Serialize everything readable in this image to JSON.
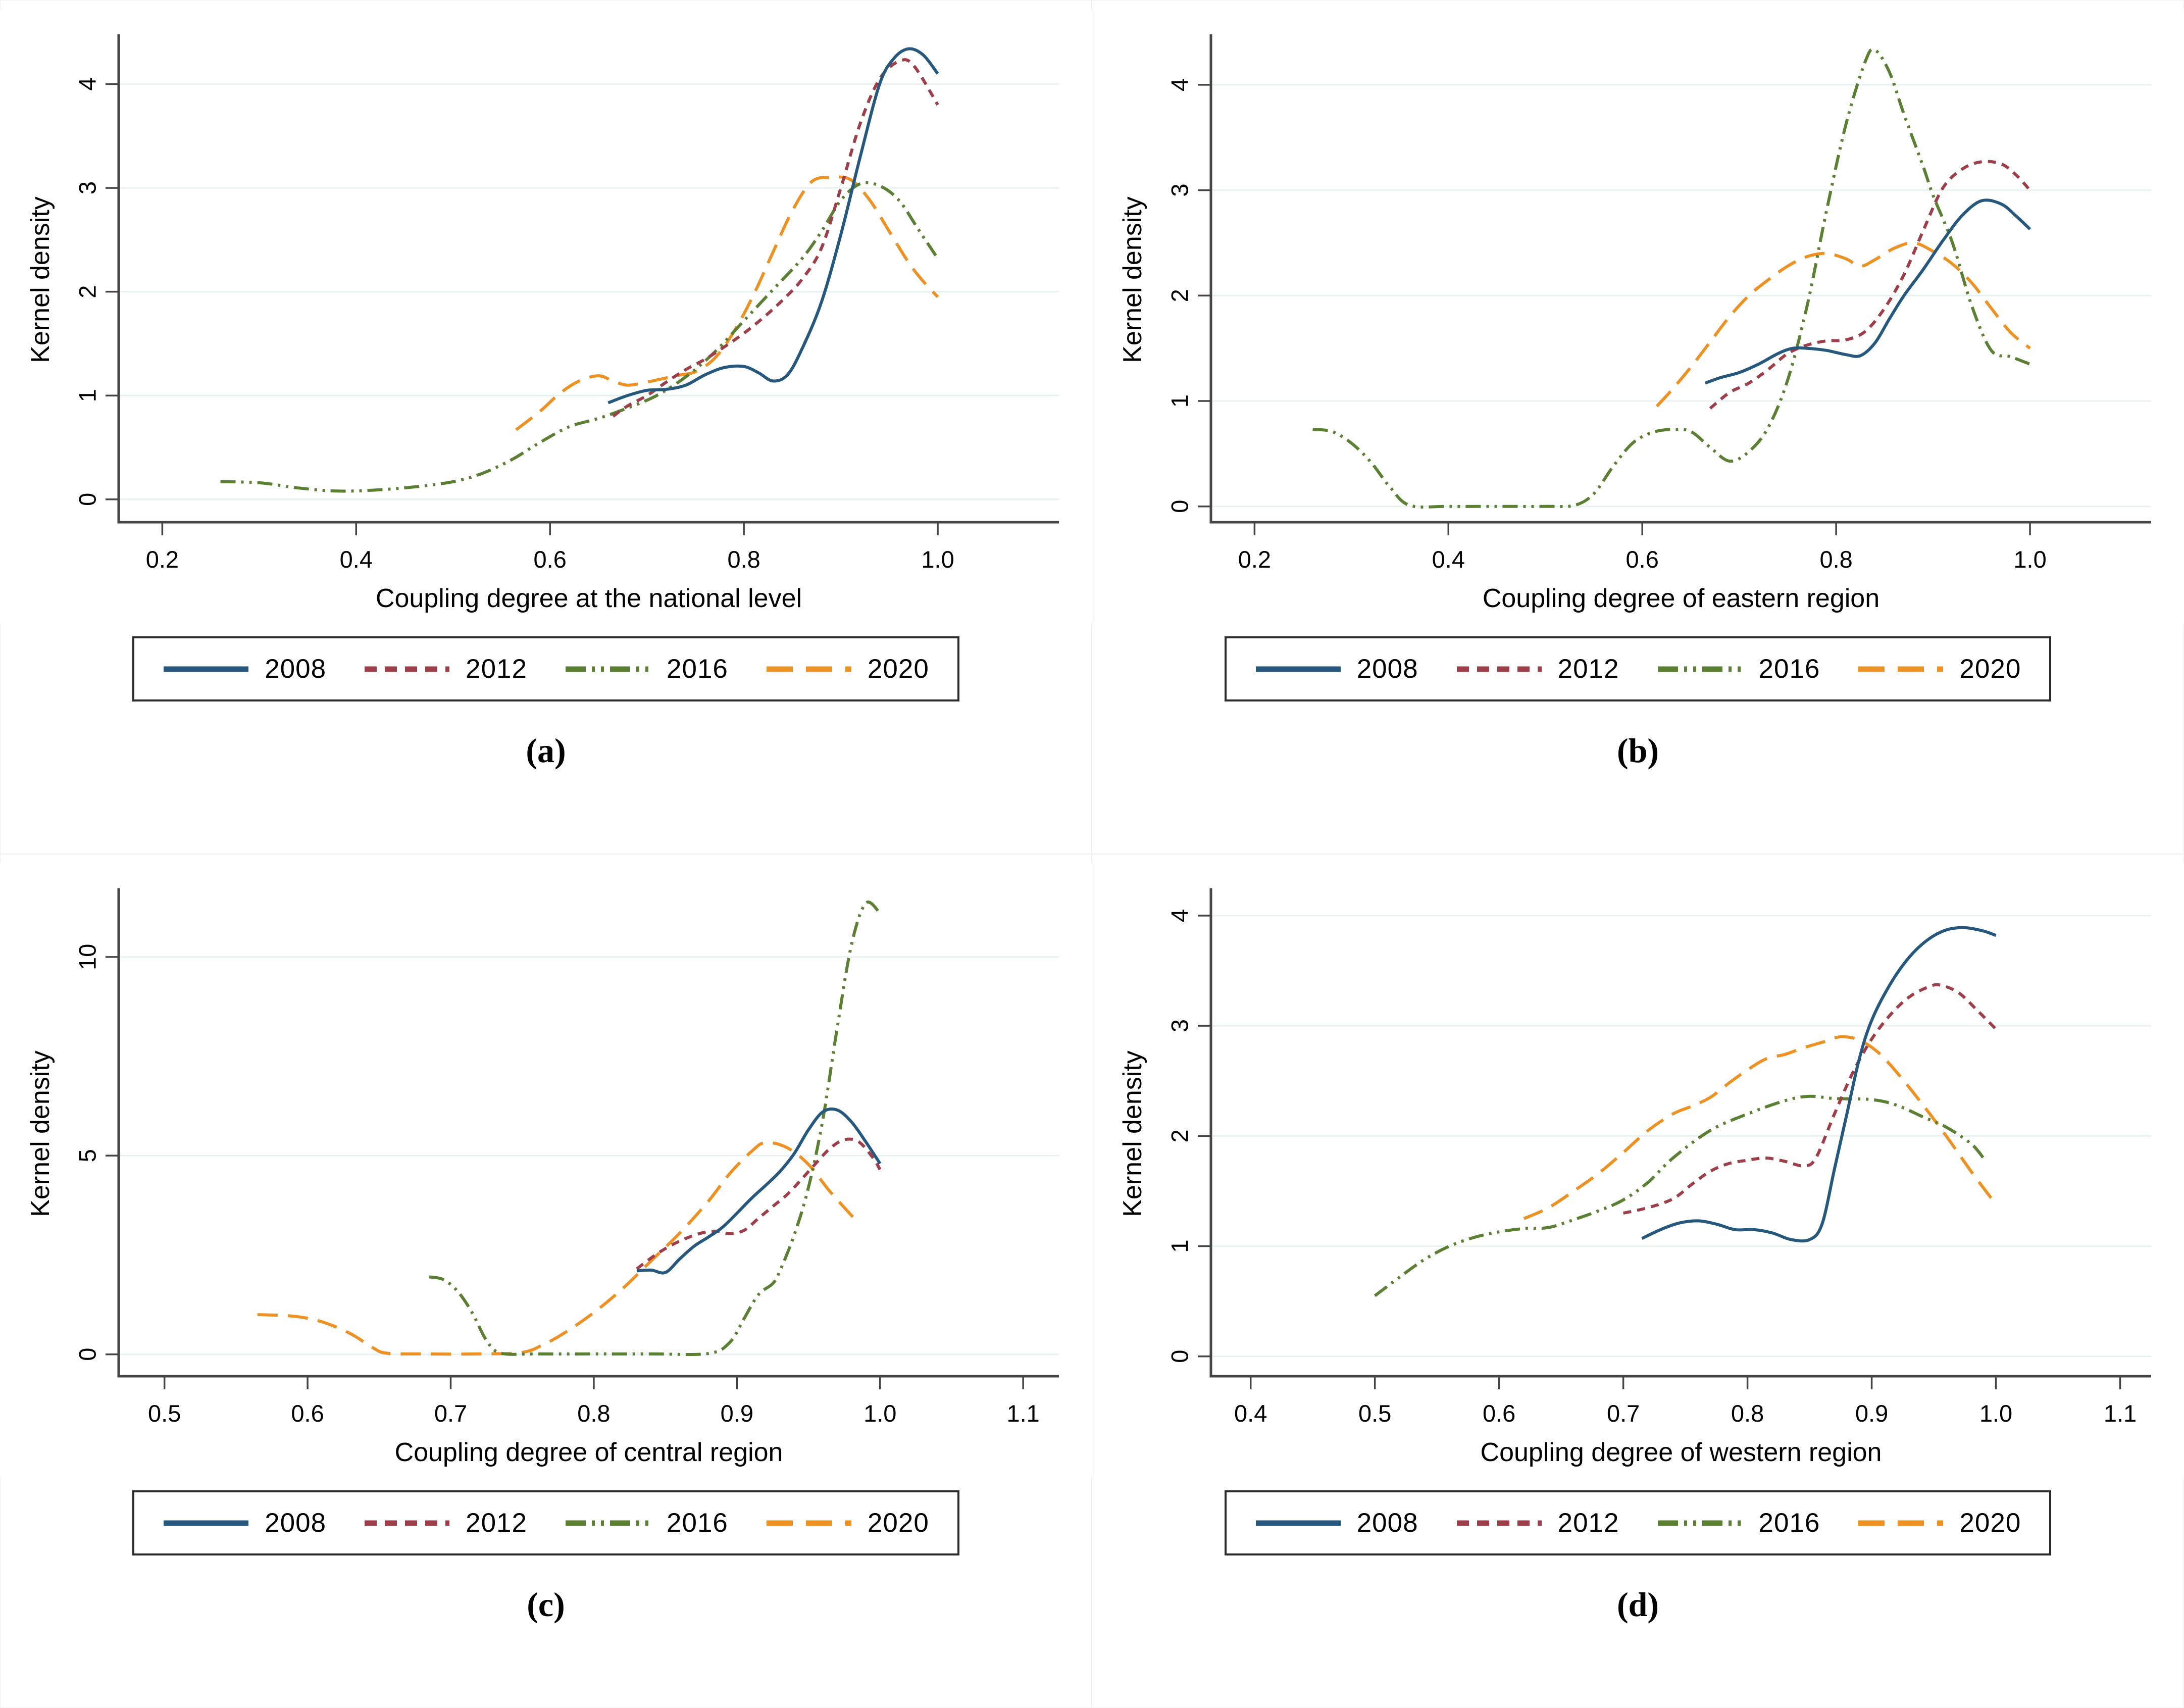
{
  "palette": {
    "background": "#ffffff",
    "gridline": "#e7f1f2",
    "axis": "#454545",
    "text": "#000000",
    "legend_border": "#2b2b2b"
  },
  "series_styles": {
    "2008": {
      "color": "#26587e",
      "line_style": "solid"
    },
    "2012": {
      "color": "#9d3e49",
      "line_style": "shortdash"
    },
    "2016": {
      "color": "#5b7f33",
      "line_style": "dash-dot-dot"
    },
    "2020": {
      "color": "#ee9123",
      "line_style": "longdash"
    }
  },
  "legend_labels": [
    "2008",
    "2012",
    "2016",
    "2020"
  ],
  "chart_data": [
    {
      "type": "line",
      "caption": "(a)",
      "xlabel": "Coupling degree at the national level",
      "ylabel": "Kernel density",
      "xlim": [
        0.155,
        1.125
      ],
      "ylim": [
        -0.22,
        4.45
      ],
      "xticks": [
        0.2,
        0.4,
        0.6,
        0.8,
        1.0
      ],
      "xtick_labels": [
        "0.2",
        "0.4",
        "0.6",
        "0.8",
        "1.0"
      ],
      "yticks": [
        0,
        1,
        2,
        3,
        4
      ],
      "ytick_labels": [
        "0",
        "1",
        "2",
        "3",
        "4"
      ],
      "grid": "horizontal",
      "legend_position": "bottom",
      "series": [
        {
          "name": "2008",
          "x": [
            0.66,
            0.68,
            0.7,
            0.72,
            0.74,
            0.76,
            0.78,
            0.8,
            0.815,
            0.83,
            0.845,
            0.86,
            0.88,
            0.9,
            0.92,
            0.94,
            0.955,
            0.97,
            0.985,
            1.0
          ],
          "y": [
            0.93,
            1.0,
            1.05,
            1.06,
            1.1,
            1.2,
            1.27,
            1.28,
            1.22,
            1.14,
            1.2,
            1.45,
            1.9,
            2.55,
            3.3,
            4.0,
            4.25,
            4.34,
            4.28,
            4.1
          ]
        },
        {
          "name": "2012",
          "x": [
            0.665,
            0.68,
            0.7,
            0.72,
            0.74,
            0.76,
            0.78,
            0.8,
            0.82,
            0.84,
            0.86,
            0.88,
            0.9,
            0.92,
            0.94,
            0.96,
            0.975,
            1.0
          ],
          "y": [
            0.8,
            0.9,
            1.0,
            1.13,
            1.25,
            1.35,
            1.47,
            1.6,
            1.75,
            1.92,
            2.12,
            2.42,
            3.0,
            3.62,
            4.05,
            4.22,
            4.18,
            3.8
          ]
        },
        {
          "name": "2016",
          "x": [
            0.26,
            0.3,
            0.34,
            0.38,
            0.42,
            0.46,
            0.5,
            0.53,
            0.56,
            0.59,
            0.62,
            0.65,
            0.68,
            0.71,
            0.74,
            0.77,
            0.8,
            0.83,
            0.86,
            0.88,
            0.9,
            0.92,
            0.94,
            0.96,
            0.98,
            1.0
          ],
          "y": [
            0.17,
            0.16,
            0.11,
            0.08,
            0.09,
            0.12,
            0.17,
            0.25,
            0.38,
            0.55,
            0.7,
            0.78,
            0.88,
            1.0,
            1.18,
            1.42,
            1.72,
            2.02,
            2.32,
            2.58,
            2.88,
            3.04,
            3.02,
            2.88,
            2.6,
            2.32
          ]
        },
        {
          "name": "2020",
          "x": [
            0.565,
            0.59,
            0.61,
            0.63,
            0.65,
            0.665,
            0.68,
            0.7,
            0.72,
            0.735,
            0.75,
            0.77,
            0.79,
            0.81,
            0.83,
            0.85,
            0.87,
            0.89,
            0.91,
            0.93,
            0.95,
            0.97,
            0.985,
            1.0
          ],
          "y": [
            0.67,
            0.85,
            1.02,
            1.14,
            1.19,
            1.14,
            1.1,
            1.13,
            1.17,
            1.2,
            1.23,
            1.36,
            1.62,
            1.97,
            2.38,
            2.78,
            3.06,
            3.1,
            3.08,
            2.88,
            2.58,
            2.28,
            2.1,
            1.95
          ]
        }
      ]
    },
    {
      "type": "line",
      "caption": "(b)",
      "xlabel": "Coupling degree of eastern region",
      "ylabel": "Kernel density",
      "xlim": [
        0.155,
        1.125
      ],
      "ylim": [
        -0.15,
        4.45
      ],
      "xticks": [
        0.2,
        0.4,
        0.6,
        0.8,
        1.0
      ],
      "xtick_labels": [
        "0.2",
        "0.4",
        "0.6",
        "0.8",
        "1.0"
      ],
      "yticks": [
        0,
        1,
        2,
        3,
        4
      ],
      "ytick_labels": [
        "0",
        "1",
        "2",
        "3",
        "4"
      ],
      "grid": "horizontal",
      "legend_position": "bottom",
      "series": [
        {
          "name": "2008",
          "x": [
            0.665,
            0.68,
            0.7,
            0.72,
            0.74,
            0.755,
            0.77,
            0.79,
            0.81,
            0.825,
            0.84,
            0.855,
            0.87,
            0.89,
            0.91,
            0.93,
            0.95,
            0.97,
            0.985,
            1.0
          ],
          "y": [
            1.17,
            1.22,
            1.27,
            1.35,
            1.45,
            1.5,
            1.5,
            1.48,
            1.44,
            1.43,
            1.55,
            1.78,
            2.0,
            2.25,
            2.52,
            2.76,
            2.9,
            2.87,
            2.76,
            2.63
          ]
        },
        {
          "name": "2012",
          "x": [
            0.67,
            0.69,
            0.71,
            0.73,
            0.75,
            0.77,
            0.79,
            0.81,
            0.83,
            0.85,
            0.87,
            0.89,
            0.91,
            0.93,
            0.95,
            0.97,
            0.985,
            1.0
          ],
          "y": [
            0.93,
            1.08,
            1.17,
            1.3,
            1.45,
            1.53,
            1.57,
            1.58,
            1.66,
            1.88,
            2.2,
            2.62,
            3.02,
            3.2,
            3.27,
            3.25,
            3.15,
            3.0
          ]
        },
        {
          "name": "2016",
          "x": [
            0.26,
            0.28,
            0.3,
            0.32,
            0.34,
            0.36,
            0.4,
            0.45,
            0.5,
            0.53,
            0.55,
            0.57,
            0.59,
            0.61,
            0.63,
            0.65,
            0.67,
            0.69,
            0.71,
            0.73,
            0.75,
            0.77,
            0.79,
            0.81,
            0.83,
            0.84,
            0.855,
            0.87,
            0.89,
            0.9,
            0.92,
            0.94,
            0.96,
            0.98,
            1.0
          ],
          "y": [
            0.73,
            0.71,
            0.6,
            0.42,
            0.18,
            0.01,
            0.0,
            0.0,
            0.0,
            0.01,
            0.12,
            0.38,
            0.6,
            0.7,
            0.73,
            0.71,
            0.56,
            0.43,
            0.52,
            0.75,
            1.2,
            1.9,
            2.8,
            3.62,
            4.22,
            4.33,
            4.12,
            3.72,
            3.22,
            2.95,
            2.5,
            1.9,
            1.48,
            1.42,
            1.35
          ]
        },
        {
          "name": "2020",
          "x": [
            0.615,
            0.63,
            0.65,
            0.67,
            0.69,
            0.71,
            0.73,
            0.75,
            0.77,
            0.79,
            0.81,
            0.825,
            0.84,
            0.86,
            0.88,
            0.9,
            0.92,
            0.94,
            0.96,
            0.98,
            1.0
          ],
          "y": [
            0.95,
            1.1,
            1.32,
            1.56,
            1.8,
            2.0,
            2.15,
            2.28,
            2.37,
            2.4,
            2.35,
            2.28,
            2.34,
            2.45,
            2.5,
            2.42,
            2.3,
            2.12,
            1.88,
            1.65,
            1.5
          ]
        }
      ]
    },
    {
      "type": "line",
      "caption": "(c)",
      "xlabel": "Coupling degree of central region",
      "ylabel": "Kernel density",
      "xlim": [
        0.468,
        1.125
      ],
      "ylim": [
        -0.55,
        11.65
      ],
      "xticks": [
        0.5,
        0.6,
        0.7,
        0.8,
        0.9,
        1.0,
        1.1
      ],
      "xtick_labels": [
        "0.5",
        "0.6",
        "0.7",
        "0.8",
        "0.9",
        "1.0",
        "1.1"
      ],
      "yticks": [
        0,
        5,
        10
      ],
      "ytick_labels": [
        "0",
        "5",
        "10"
      ],
      "grid": "horizontal",
      "legend_position": "bottom",
      "series": [
        {
          "name": "2008",
          "x": [
            0.83,
            0.84,
            0.85,
            0.86,
            0.87,
            0.88,
            0.89,
            0.9,
            0.91,
            0.92,
            0.93,
            0.94,
            0.95,
            0.96,
            0.97,
            0.98,
            0.99,
            1.0
          ],
          "y": [
            2.1,
            2.12,
            2.06,
            2.4,
            2.72,
            2.95,
            3.2,
            3.55,
            3.92,
            4.25,
            4.6,
            5.05,
            5.65,
            6.1,
            6.15,
            5.85,
            5.35,
            4.8
          ]
        },
        {
          "name": "2012",
          "x": [
            0.83,
            0.845,
            0.86,
            0.875,
            0.885,
            0.895,
            0.905,
            0.915,
            0.925,
            0.935,
            0.945,
            0.955,
            0.965,
            0.975,
            0.985,
            0.995,
            1.0
          ],
          "y": [
            2.15,
            2.55,
            2.85,
            3.05,
            3.1,
            3.04,
            3.12,
            3.42,
            3.72,
            4.02,
            4.4,
            4.8,
            5.18,
            5.4,
            5.35,
            4.95,
            4.65
          ]
        },
        {
          "name": "2016",
          "x": [
            0.685,
            0.695,
            0.705,
            0.715,
            0.725,
            0.735,
            0.76,
            0.8,
            0.84,
            0.88,
            0.895,
            0.905,
            0.915,
            0.925,
            0.93,
            0.94,
            0.95,
            0.96,
            0.97,
            0.98,
            0.99,
            1.0
          ],
          "y": [
            1.95,
            1.88,
            1.58,
            1.05,
            0.35,
            0.03,
            0.01,
            0.01,
            0.01,
            0.02,
            0.3,
            0.9,
            1.5,
            1.78,
            2.1,
            3.0,
            4.2,
            5.9,
            8.2,
            10.3,
            11.35,
            11.1
          ]
        },
        {
          "name": "2020",
          "x": [
            0.565,
            0.59,
            0.61,
            0.63,
            0.645,
            0.655,
            0.68,
            0.72,
            0.75,
            0.765,
            0.78,
            0.8,
            0.82,
            0.84,
            0.86,
            0.88,
            0.895,
            0.91,
            0.92,
            0.935,
            0.95,
            0.965,
            0.985
          ],
          "y": [
            1.0,
            0.96,
            0.82,
            0.52,
            0.18,
            0.03,
            0.01,
            0.01,
            0.05,
            0.25,
            0.55,
            1.05,
            1.65,
            2.35,
            3.05,
            3.85,
            4.55,
            5.1,
            5.33,
            5.2,
            4.78,
            4.1,
            3.3
          ]
        }
      ]
    },
    {
      "type": "line",
      "caption": "(d)",
      "xlabel": "Coupling degree of western region",
      "ylabel": "Kernel density",
      "xlim": [
        0.368,
        1.125
      ],
      "ylim": [
        -0.18,
        4.22
      ],
      "xticks": [
        0.4,
        0.5,
        0.6,
        0.7,
        0.8,
        0.9,
        1.0,
        1.1
      ],
      "xtick_labels": [
        "0.4",
        "0.5",
        "0.6",
        "0.7",
        "0.8",
        "0.9",
        "1.0",
        "1.1"
      ],
      "yticks": [
        0,
        1,
        2,
        3,
        4
      ],
      "ytick_labels": [
        "0",
        "1",
        "2",
        "3",
        "4"
      ],
      "grid": "horizontal",
      "legend_position": "bottom",
      "series": [
        {
          "name": "2008",
          "x": [
            0.715,
            0.73,
            0.745,
            0.76,
            0.775,
            0.79,
            0.805,
            0.82,
            0.835,
            0.85,
            0.86,
            0.87,
            0.88,
            0.89,
            0.9,
            0.915,
            0.93,
            0.945,
            0.96,
            0.975,
            0.99,
            1.0
          ],
          "y": [
            1.07,
            1.15,
            1.21,
            1.23,
            1.2,
            1.15,
            1.15,
            1.12,
            1.06,
            1.06,
            1.2,
            1.7,
            2.2,
            2.7,
            3.05,
            3.38,
            3.62,
            3.78,
            3.87,
            3.89,
            3.86,
            3.82
          ]
        },
        {
          "name": "2012",
          "x": [
            0.7,
            0.72,
            0.74,
            0.755,
            0.77,
            0.785,
            0.8,
            0.815,
            0.83,
            0.845,
            0.855,
            0.87,
            0.885,
            0.9,
            0.915,
            0.93,
            0.945,
            0.955,
            0.97,
            0.985,
            1.0
          ],
          "y": [
            1.3,
            1.35,
            1.43,
            1.56,
            1.68,
            1.75,
            1.78,
            1.8,
            1.77,
            1.73,
            1.8,
            2.2,
            2.58,
            2.88,
            3.1,
            3.26,
            3.35,
            3.37,
            3.3,
            3.14,
            2.97
          ]
        },
        {
          "name": "2016",
          "x": [
            0.5,
            0.52,
            0.54,
            0.56,
            0.58,
            0.6,
            0.62,
            0.64,
            0.66,
            0.68,
            0.7,
            0.72,
            0.74,
            0.77,
            0.8,
            0.83,
            0.85,
            0.87,
            0.9,
            0.92,
            0.94,
            0.96,
            0.98,
            0.99
          ],
          "y": [
            0.55,
            0.72,
            0.88,
            1.0,
            1.08,
            1.13,
            1.16,
            1.17,
            1.24,
            1.32,
            1.42,
            1.58,
            1.8,
            2.05,
            2.2,
            2.32,
            2.36,
            2.34,
            2.33,
            2.28,
            2.18,
            2.08,
            1.93,
            1.8
          ]
        },
        {
          "name": "2020",
          "x": [
            0.62,
            0.64,
            0.66,
            0.68,
            0.7,
            0.72,
            0.74,
            0.755,
            0.77,
            0.785,
            0.8,
            0.815,
            0.83,
            0.845,
            0.86,
            0.875,
            0.89,
            0.905,
            0.92,
            0.94,
            0.96,
            0.98,
            1.0
          ],
          "y": [
            1.25,
            1.35,
            1.5,
            1.66,
            1.85,
            2.05,
            2.2,
            2.27,
            2.35,
            2.48,
            2.6,
            2.7,
            2.74,
            2.8,
            2.85,
            2.9,
            2.87,
            2.76,
            2.58,
            2.3,
            2.0,
            1.68,
            1.38
          ]
        }
      ]
    }
  ]
}
